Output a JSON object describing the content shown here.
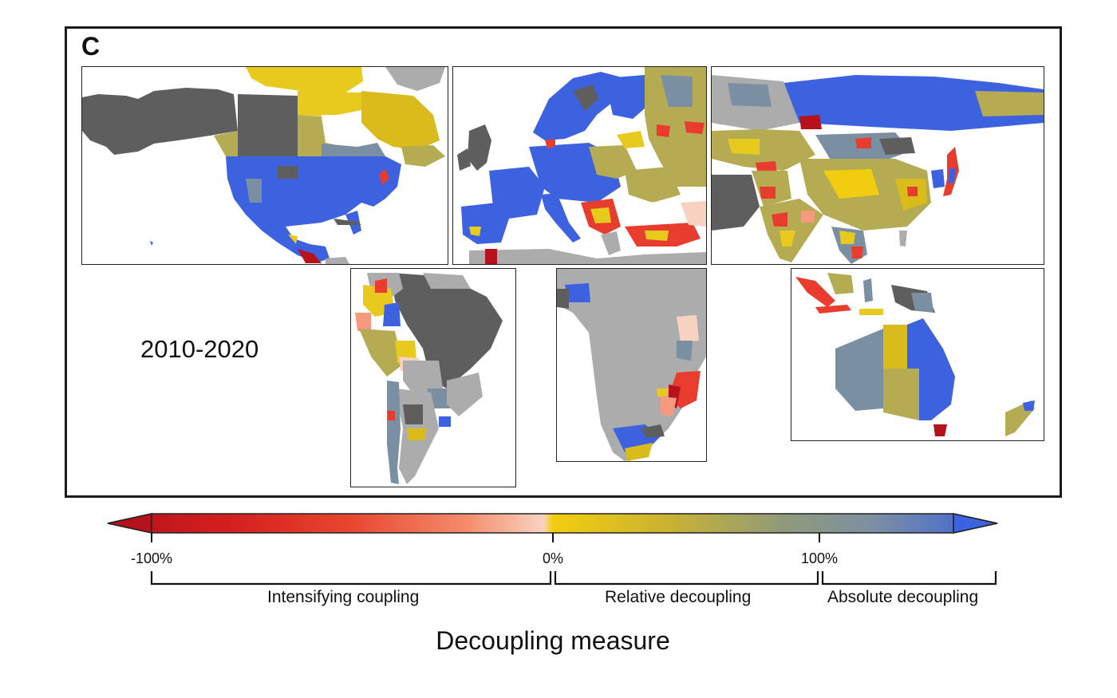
{
  "figure": {
    "panel_letter": "C",
    "period": "2010-2020"
  },
  "maps": {
    "regions": [
      {
        "name": "north-america"
      },
      {
        "name": "europe"
      },
      {
        "name": "asia"
      },
      {
        "name": "south-america"
      },
      {
        "name": "africa"
      },
      {
        "name": "oceania"
      }
    ]
  },
  "colorbar": {
    "title": "Decoupling measure",
    "ticks": [
      "-100%",
      "0%",
      "100%"
    ],
    "categories": [
      "Intensifying coupling",
      "Relative decoupling",
      "Absolute decoupling"
    ],
    "colors": {
      "deep_red": "#b5121b",
      "red": "#e83d2e",
      "salmon": "#f59a7e",
      "light_peach": "#f8d2c0",
      "yellow": "#f2cd0f",
      "olive": "#b5ab53",
      "slate": "#7b8fa3",
      "blue": "#3c62df",
      "dark_gray": "#5e5e5e",
      "light_gray": "#acacac"
    }
  }
}
